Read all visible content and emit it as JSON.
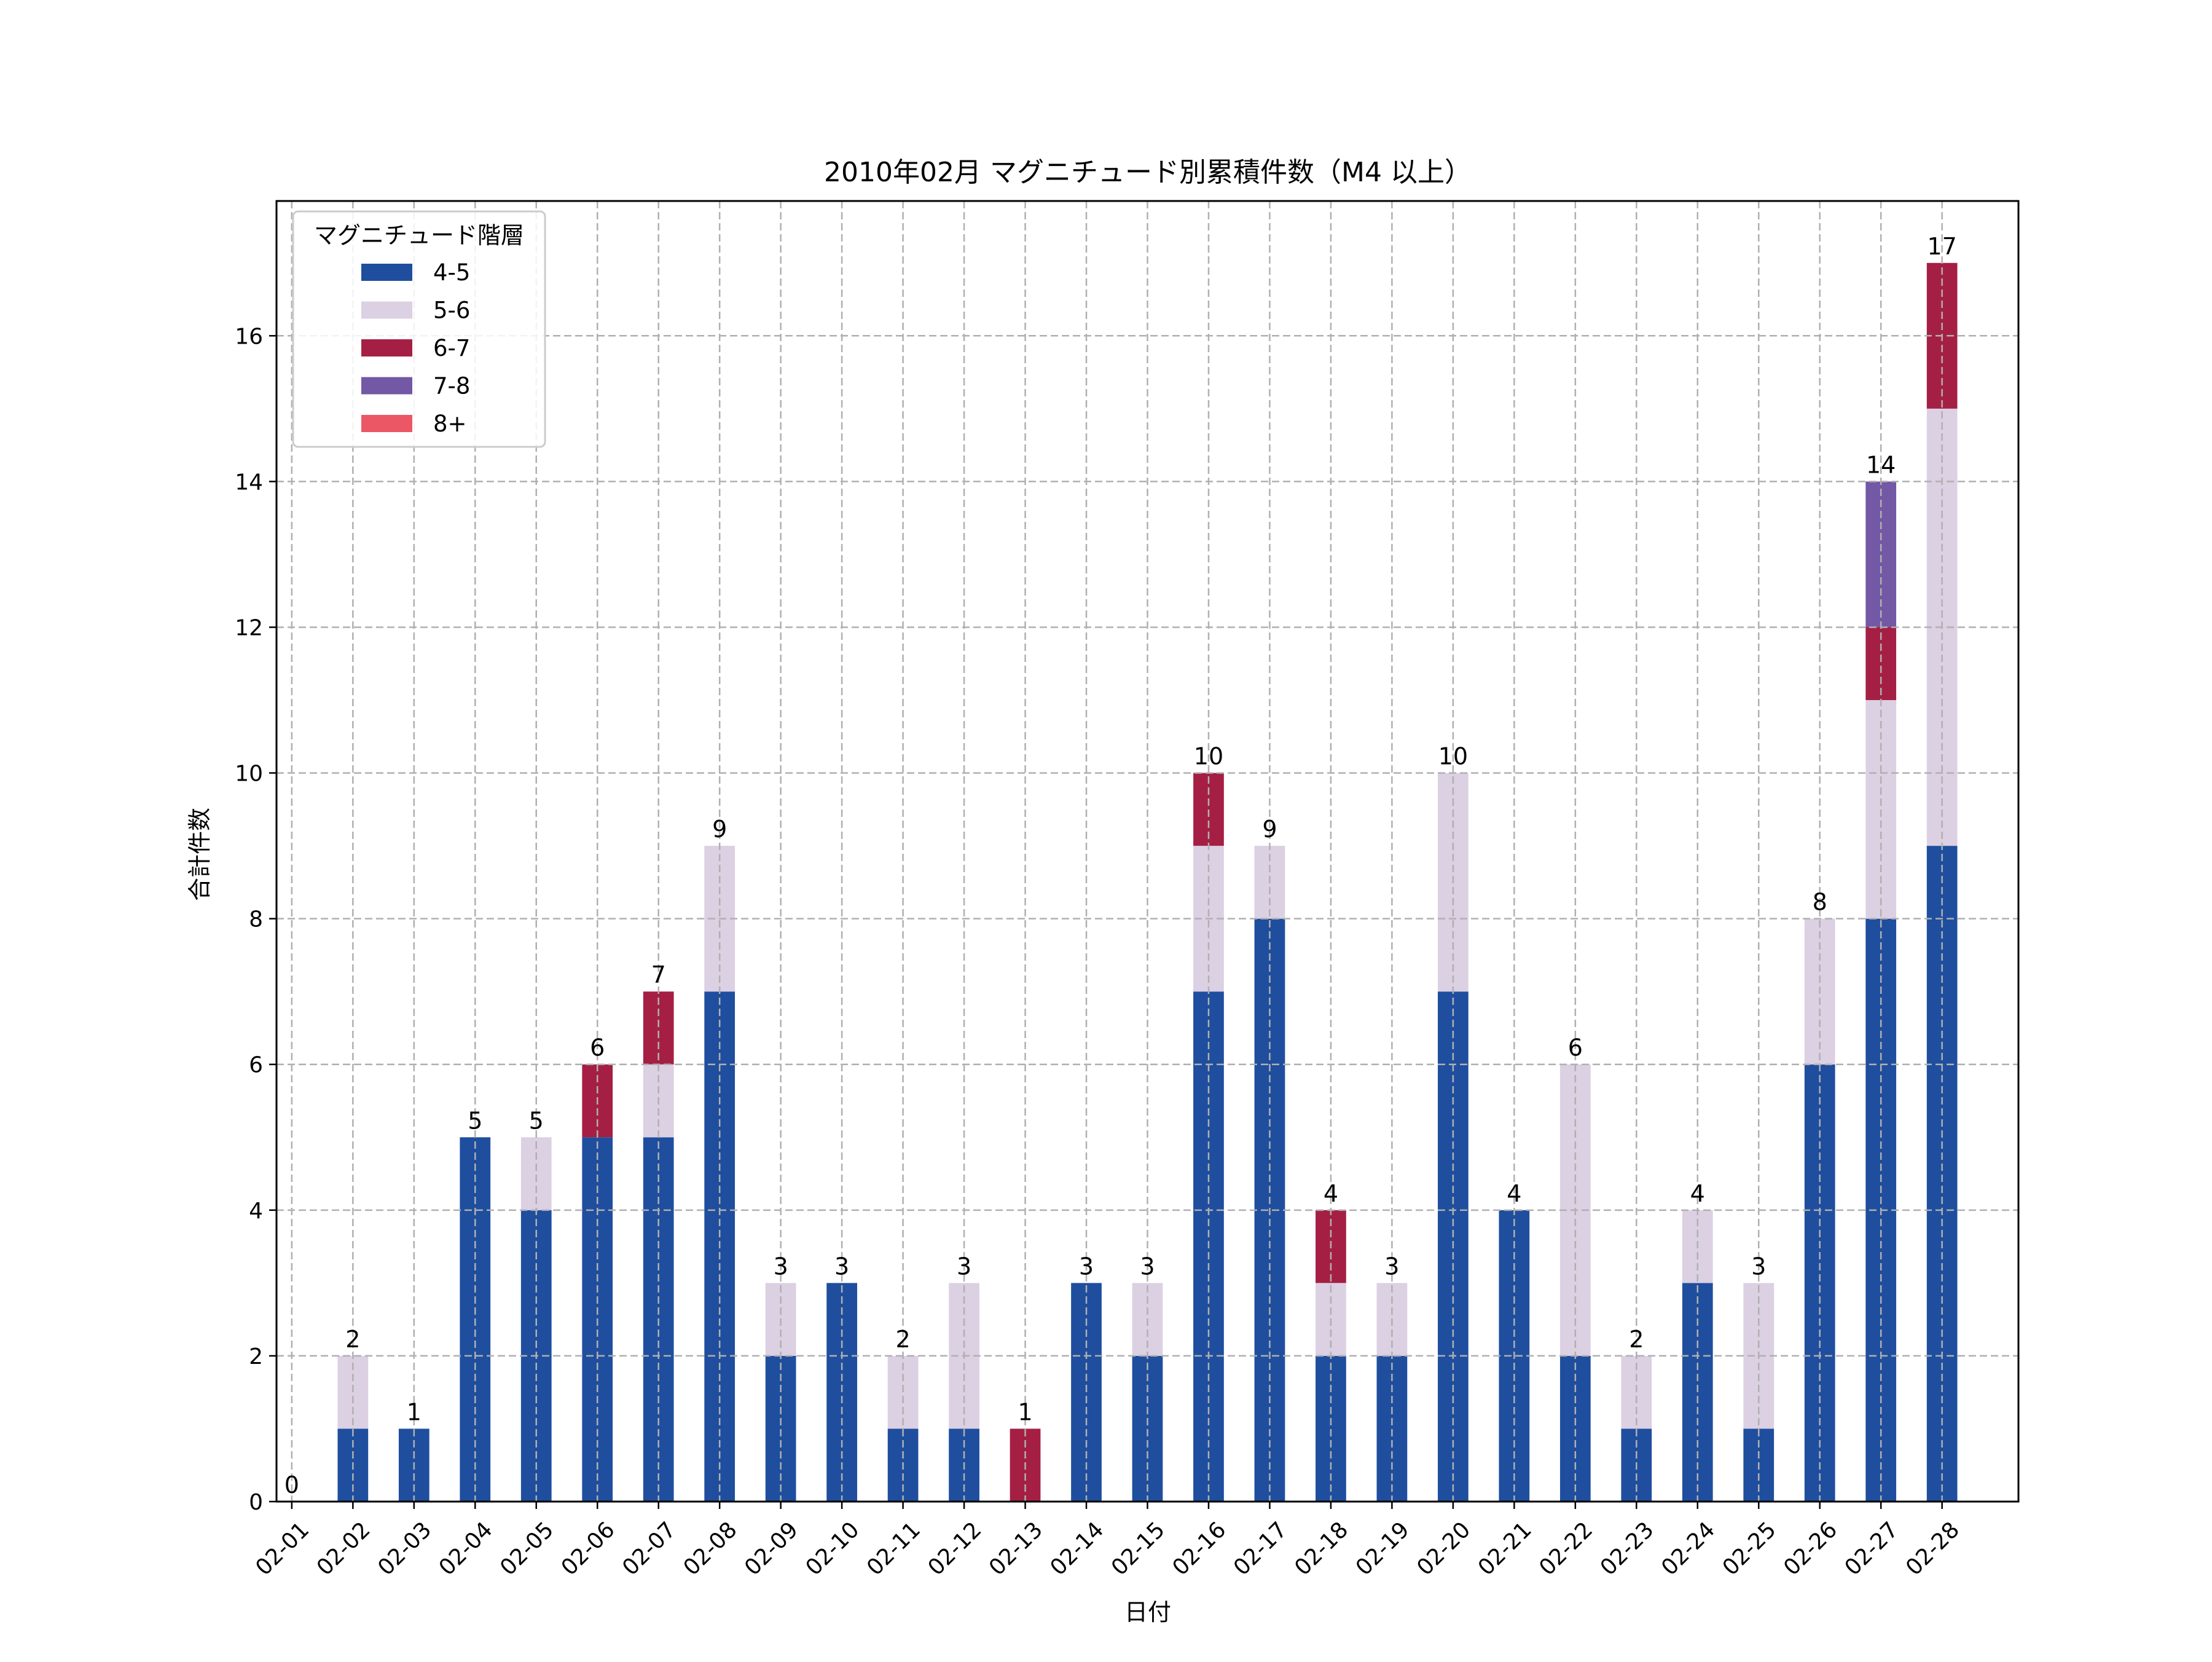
{
  "chart_data": {
    "type": "bar",
    "stacked": true,
    "title": "2010年02月 マグニチュード別累積件数（M4 以上）",
    "xlabel": "日付",
    "ylabel": "合計件数",
    "ylim": [
      0,
      17.85
    ],
    "yticks": [
      0,
      2,
      4,
      6,
      8,
      10,
      12,
      14,
      16
    ],
    "grid": true,
    "legend": {
      "title": "マグニチュード階層",
      "placement": "top-left"
    },
    "categories": [
      "02-01",
      "02-02",
      "02-03",
      "02-04",
      "02-05",
      "02-06",
      "02-07",
      "02-08",
      "02-09",
      "02-10",
      "02-11",
      "02-12",
      "02-13",
      "02-14",
      "02-15",
      "02-16",
      "02-17",
      "02-18",
      "02-19",
      "02-20",
      "02-21",
      "02-22",
      "02-23",
      "02-24",
      "02-25",
      "02-26",
      "02-27",
      "02-28"
    ],
    "series": [
      {
        "name": "4-5",
        "color": "#1f4e9e",
        "values": [
          0,
          1,
          1,
          5,
          4,
          5,
          5,
          7,
          2,
          3,
          1,
          1,
          0,
          3,
          2,
          7,
          8,
          2,
          2,
          7,
          4,
          2,
          1,
          3,
          1,
          6,
          8,
          9
        ]
      },
      {
        "name": "5-6",
        "color": "#dcd0e3",
        "values": [
          0,
          1,
          0,
          0,
          1,
          0,
          1,
          2,
          1,
          0,
          1,
          2,
          0,
          0,
          1,
          2,
          1,
          1,
          1,
          3,
          0,
          4,
          1,
          1,
          2,
          2,
          3,
          6
        ]
      },
      {
        "name": "6-7",
        "color": "#a51f44",
        "values": [
          0,
          0,
          0,
          0,
          0,
          1,
          1,
          0,
          0,
          0,
          0,
          0,
          1,
          0,
          0,
          1,
          0,
          1,
          0,
          0,
          0,
          0,
          0,
          0,
          0,
          0,
          1,
          2
        ]
      },
      {
        "name": "7-8",
        "color": "#7358a5",
        "values": [
          0,
          0,
          0,
          0,
          0,
          0,
          0,
          0,
          0,
          0,
          0,
          0,
          0,
          0,
          0,
          0,
          0,
          0,
          0,
          0,
          0,
          0,
          0,
          0,
          0,
          0,
          2,
          0
        ]
      },
      {
        "name": "8+",
        "color": "#ec5766",
        "values": [
          0,
          0,
          0,
          0,
          0,
          0,
          0,
          0,
          0,
          0,
          0,
          0,
          0,
          0,
          0,
          0,
          0,
          0,
          0,
          0,
          0,
          0,
          0,
          0,
          0,
          0,
          0,
          0
        ]
      }
    ],
    "totals": [
      0,
      2,
      1,
      5,
      5,
      6,
      7,
      9,
      3,
      3,
      2,
      3,
      1,
      3,
      3,
      10,
      9,
      4,
      3,
      10,
      4,
      6,
      2,
      4,
      3,
      8,
      14,
      17
    ]
  }
}
